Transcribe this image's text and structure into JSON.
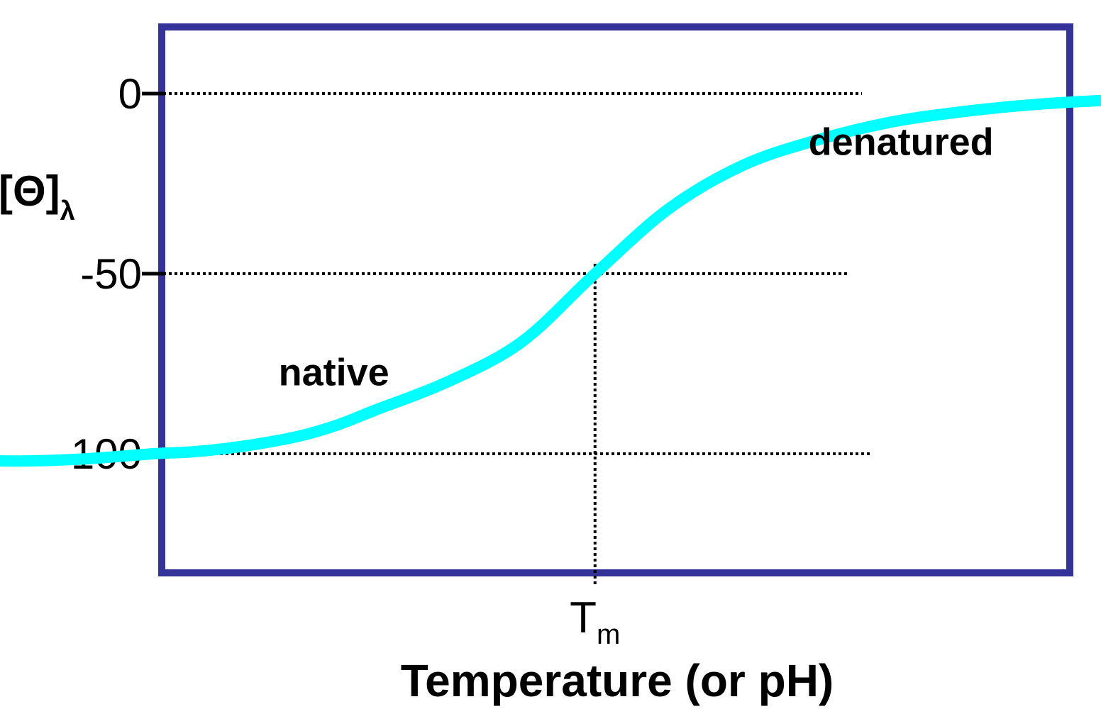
{
  "chart_data": {
    "type": "line",
    "title": "",
    "xlabel": "Temperature (or pH)",
    "ylabel_main": "[Θ]",
    "ylabel_sub": "λ",
    "y_ticks": [
      0,
      -50,
      -100
    ],
    "ylim": [
      -125,
      17
    ],
    "grid": false,
    "reference_lines_y": [
      0,
      -50,
      -100
    ],
    "midpoint_marker": {
      "label_main": "T",
      "label_sub": "m",
      "x": 0.5,
      "y": -50
    },
    "region_labels": [
      {
        "text": "native",
        "x": 0.07,
        "y": -81
      },
      {
        "text": "denatured",
        "x": 0.79,
        "y": -17
      }
    ],
    "series": [
      {
        "color": "#00FFFF",
        "x": [
          -0.42,
          -0.3,
          -0.2,
          -0.1,
          -0.05,
          0.0,
          0.05,
          0.1,
          0.15,
          0.2,
          0.3,
          0.4,
          0.5,
          0.6,
          0.7,
          0.8,
          0.9,
          1.0,
          1.1,
          1.2,
          1.3,
          1.4,
          1.5
        ],
        "y": [
          -101.0,
          -102.0,
          -101.5,
          -100.0,
          -99.5,
          -98.5,
          -97.0,
          -95.0,
          -92.0,
          -88.0,
          -80.0,
          -69.0,
          -50.0,
          -32.0,
          -20.0,
          -13.0,
          -8.0,
          -5.0,
          -3.0,
          -1.8,
          -1.0,
          -0.5,
          -0.2
        ]
      }
    ]
  }
}
